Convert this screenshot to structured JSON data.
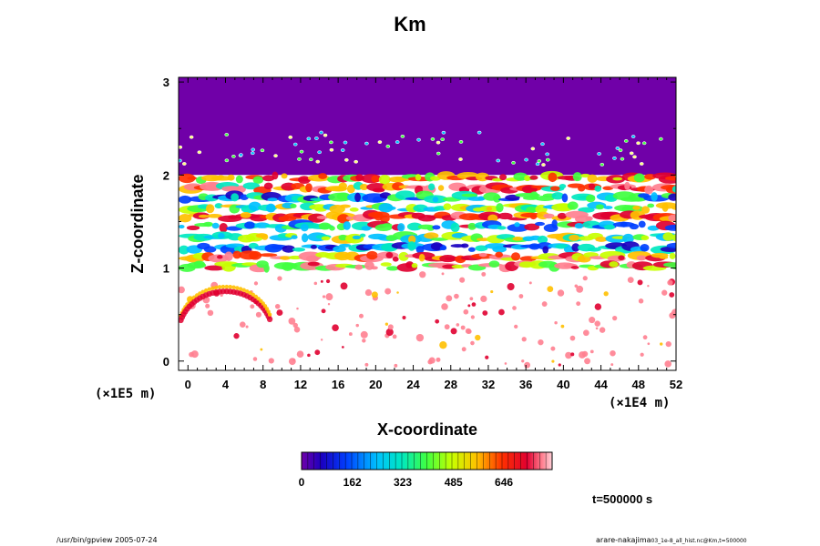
{
  "chart_data": {
    "type": "heatmap",
    "title": "Km",
    "xlabel": "X-coordinate",
    "ylabel": "Z-coordinate",
    "x_unit": "(×1E4 m)",
    "y_unit": "(×1E5 m)",
    "x_range": [
      -1,
      52
    ],
    "y_range": [
      -0.1,
      3.05
    ],
    "x_ticks": [
      "0",
      "4",
      "8",
      "12",
      "16",
      "20",
      "24",
      "28",
      "32",
      "36",
      "40",
      "44",
      "48",
      "52"
    ],
    "x_tick_values": [
      0,
      4,
      8,
      12,
      16,
      20,
      24,
      28,
      32,
      36,
      40,
      44,
      48,
      52
    ],
    "y_ticks": [
      "0",
      "1",
      "2",
      "3"
    ],
    "y_tick_values": [
      0,
      1,
      2,
      3
    ],
    "regions": [
      {
        "z_min": 2.0,
        "z_max": 3.05,
        "value": 0,
        "description": "uniform minimum (purple)"
      },
      {
        "z_min": 1.0,
        "z_max": 2.0,
        "value": "mixed 0-800",
        "description": "turbulent layered band"
      },
      {
        "z_min": -0.1,
        "z_max": 1.0,
        "value": "0-800 sparse",
        "description": "mostly maximum (white) with patches"
      }
    ],
    "colorbar": {
      "ticks": [
        "0",
        "162",
        "323",
        "485",
        "646"
      ],
      "tick_values": [
        0,
        162,
        323,
        485,
        646
      ],
      "max": 800
    },
    "time_label": "t=500000 s"
  },
  "footer": {
    "left": "/usr/bin/gpview 2005-07-24",
    "right_main": "arare-nakajima",
    "right_small": "03_1e-8_all_hist.nc@Km,t=500000"
  },
  "colors": {
    "background": "#ffffff",
    "min_color": "#7000a8",
    "max_color": "#ffffff"
  }
}
